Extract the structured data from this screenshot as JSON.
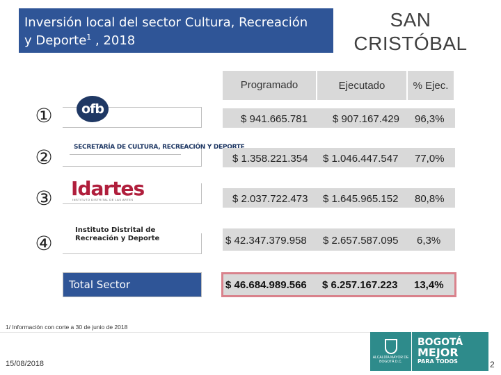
{
  "title": {
    "line1": "Inversión local del sector Cultura, Recreación",
    "line2_prefix": "y Deporte",
    "line2_sup": "1",
    "line2_suffix": " , 2018"
  },
  "city": {
    "line1": "SAN",
    "line2": "CRISTÓBAL"
  },
  "columns": {
    "programado": "Programado",
    "ejecutado": "Ejecutado",
    "pct": "% Ejec."
  },
  "rows": [
    {
      "icon": "①",
      "entity": "ofb",
      "programado": "$ 941.665.781",
      "ejecutado": "$ 907.167.429",
      "pct": "96,3%"
    },
    {
      "icon": "②",
      "entity": "SECRETARÍA DE CULTURA, RECREACIÓN Y DEPORTE",
      "programado": "$ 1.358.221.354",
      "ejecutado": "$ 1.046.447.547",
      "pct": "77,0%"
    },
    {
      "icon": "③",
      "entity": "Idartes",
      "entity_sub": "INSTITUTO DISTRITAL DE LAS ARTES",
      "programado": "$ 2.037.722.473",
      "ejecutado": "$ 1.645.965.152",
      "pct": "80,8%"
    },
    {
      "icon": "④",
      "entity": "Instituto Distrital de Recreación y Deporte",
      "programado": "$ 42.347.379.958",
      "ejecutado": "$ 2.657.587.095",
      "pct": "6,3%"
    }
  ],
  "total": {
    "label": "Total Sector",
    "programado": "$ 46.684.989.566",
    "ejecutado": "$ 6.257.167.223",
    "pct": "13,4%"
  },
  "footnote": "1/ Información con corte a 30 de junio de 2018",
  "date": "15/08/2018",
  "page_number": "2",
  "footer_logo": {
    "crest_text": "ALCALDÍA MAYOR DE BOGOTÁ D.C.",
    "line1": "BOGOTÁ",
    "line2": "MEJOR",
    "line3": "PARA TODOS"
  },
  "colors": {
    "title_bg": "#2f5597",
    "table_bg": "#d9d9d9",
    "total_border": "#d9828c",
    "idartes": "#b01e3c",
    "footer_logo_bg": "#2e8b8b"
  }
}
